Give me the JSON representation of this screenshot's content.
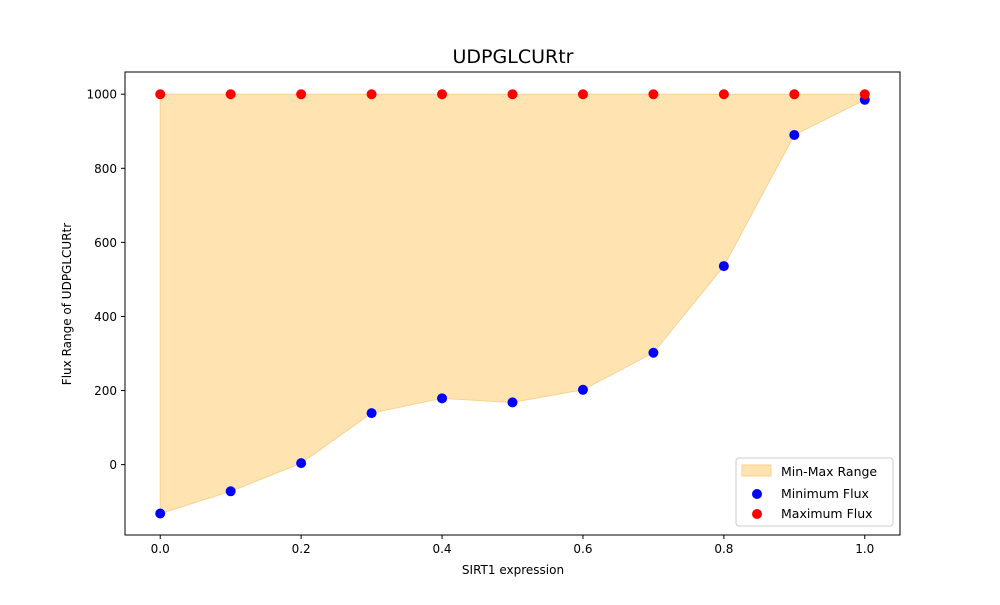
{
  "chart_data": {
    "type": "scatter",
    "title": "UDPGLCURtr",
    "xlabel": "SIRT1 expression",
    "ylabel": "Flux Range of UDPGLCURtr",
    "x": [
      0.0,
      0.1,
      0.2,
      0.3,
      0.4,
      0.5,
      0.6,
      0.7,
      0.8,
      0.9,
      1.0
    ],
    "series": [
      {
        "name": "Minimum Flux",
        "color": "#0000ff",
        "values": [
          -132,
          -72,
          4,
          139,
          179,
          168,
          202,
          302,
          536,
          890,
          985
        ]
      },
      {
        "name": "Maximum Flux",
        "color": "#ff0000",
        "values": [
          1000,
          1000,
          1000,
          1000,
          1000,
          1000,
          1000,
          1000,
          1000,
          1000,
          1000
        ]
      }
    ],
    "fill": {
      "name": "Min-Max Range",
      "color": "#ffe3b0",
      "edge_color": "#f9d28f"
    },
    "xlim": [
      -0.05,
      1.05
    ],
    "ylim": [
      -190,
      1060
    ],
    "xticks": [
      0.0,
      0.2,
      0.4,
      0.6,
      0.8,
      1.0
    ],
    "xtick_labels": [
      "0.0",
      "0.2",
      "0.4",
      "0.6",
      "0.8",
      "1.0"
    ],
    "yticks": [
      0,
      200,
      400,
      600,
      800,
      1000
    ],
    "ytick_labels": [
      "0",
      "200",
      "400",
      "600",
      "800",
      "1000"
    ],
    "grid": false,
    "legend_position": "lower-right"
  }
}
